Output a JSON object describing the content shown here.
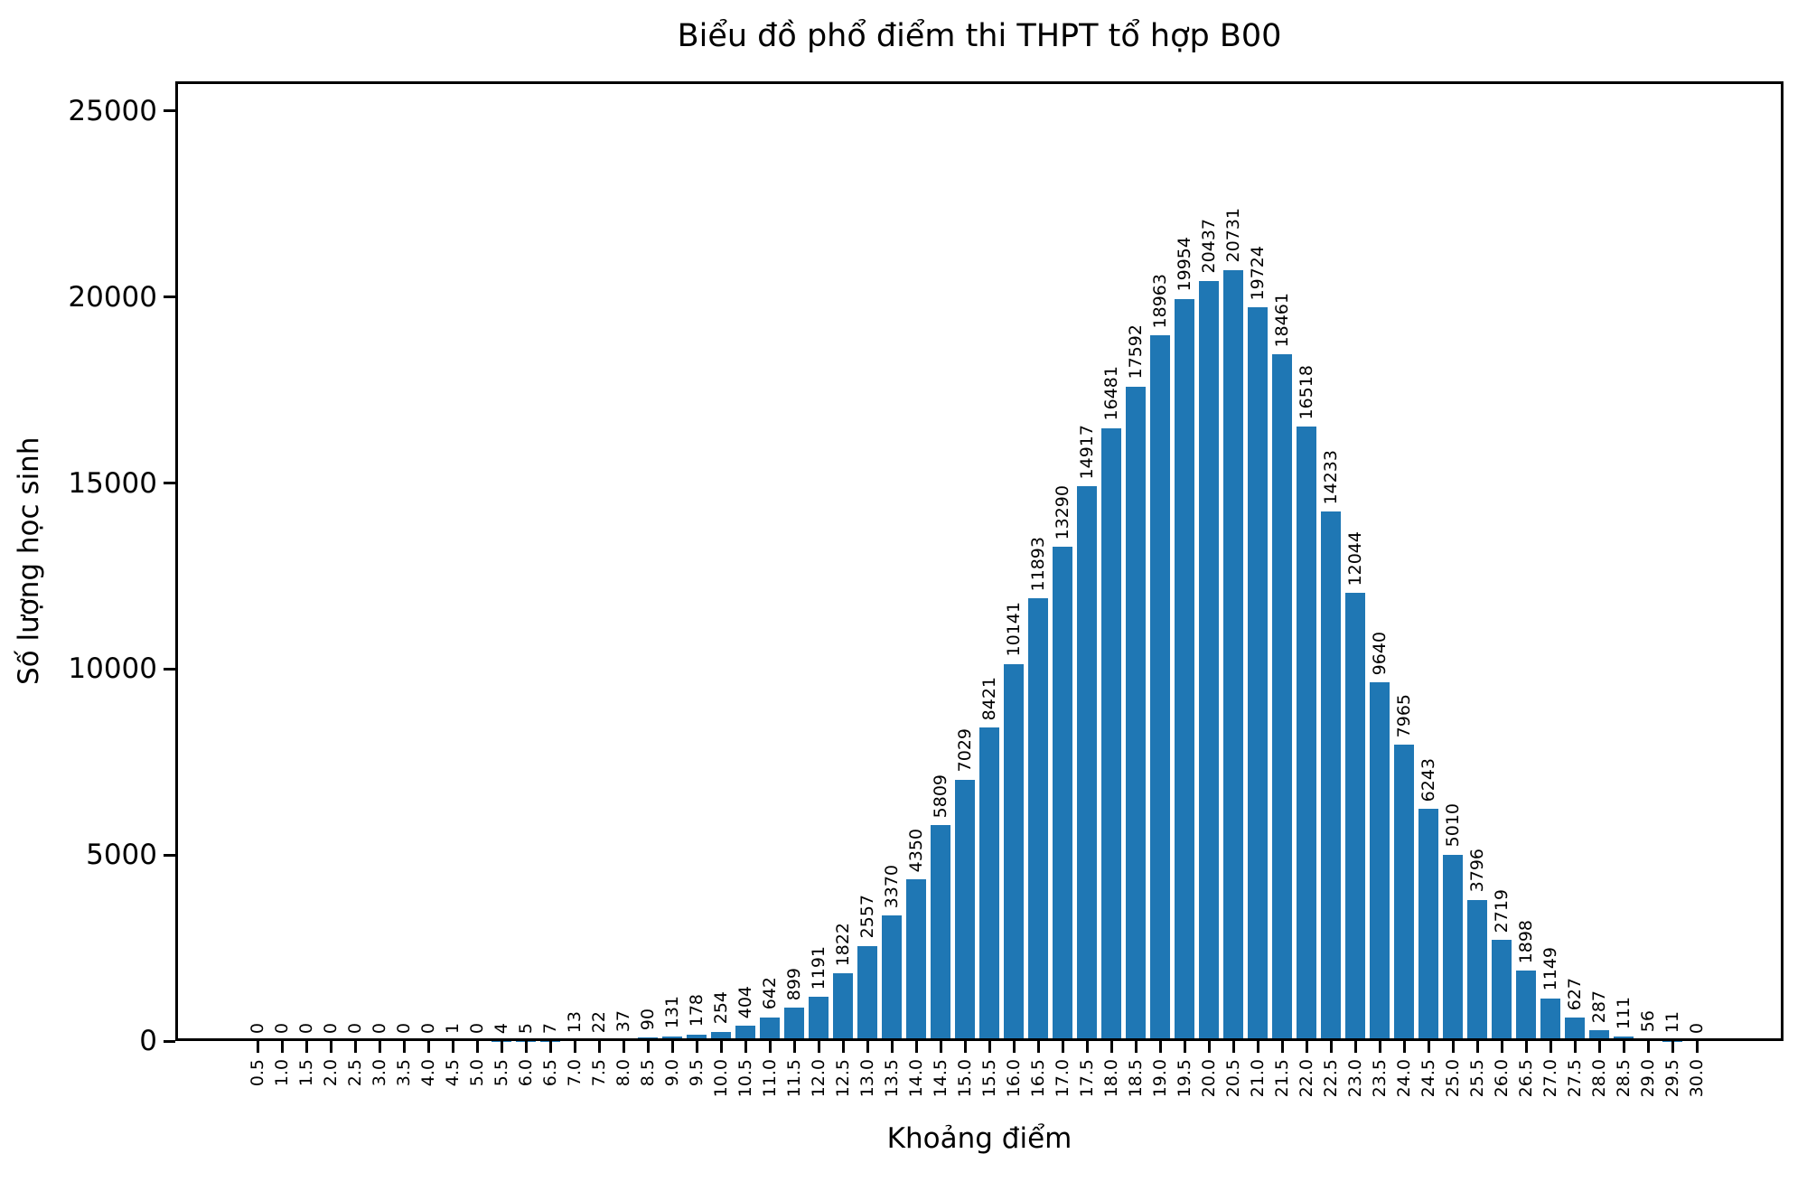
{
  "title": "Biểu đồ phổ điểm thi THPT tổ hợp B00",
  "chart_data": {
    "type": "bar",
    "title": "Biểu đồ phổ điểm thi THPT tổ hợp B00",
    "xlabel": "Khoảng điểm",
    "ylabel": "Số lượng học sinh",
    "categories": [
      "0.5",
      "1.0",
      "1.5",
      "2.0",
      "2.5",
      "3.0",
      "3.5",
      "4.0",
      "4.5",
      "5.0",
      "5.5",
      "6.0",
      "6.5",
      "7.0",
      "7.5",
      "8.0",
      "8.5",
      "9.0",
      "9.5",
      "10.0",
      "10.5",
      "11.0",
      "11.5",
      "12.0",
      "12.5",
      "13.0",
      "13.5",
      "14.0",
      "14.5",
      "15.0",
      "15.5",
      "16.0",
      "16.5",
      "17.0",
      "17.5",
      "18.0",
      "18.5",
      "19.0",
      "19.5",
      "20.0",
      "20.5",
      "21.0",
      "21.5",
      "22.0",
      "22.5",
      "23.0",
      "23.5",
      "24.0",
      "24.5",
      "25.0",
      "25.5",
      "26.0",
      "26.5",
      "27.0",
      "27.5",
      "28.0",
      "28.5",
      "29.0",
      "29.5",
      "30.0"
    ],
    "values": [
      0,
      0,
      0,
      0,
      0,
      0,
      0,
      0,
      1,
      0,
      4,
      5,
      7,
      13,
      22,
      37,
      90,
      131,
      178,
      254,
      404,
      642,
      899,
      1191,
      1822,
      2557,
      3370,
      4350,
      5809,
      7029,
      8421,
      10141,
      11893,
      13290,
      14917,
      16481,
      17592,
      18963,
      19954,
      20437,
      20731,
      19724,
      18461,
      16518,
      14233,
      12044,
      9640,
      7965,
      6243,
      5010,
      3796,
      2719,
      1898,
      1149,
      627,
      287,
      111,
      56,
      11,
      0
    ],
    "yticks": [
      0,
      5000,
      10000,
      15000,
      20000,
      25000
    ],
    "ylim": [
      0,
      25800
    ],
    "xtick_rotation": 90,
    "bar_label_rotation": 90,
    "bar_color": "#1f77b4",
    "axis_color": "#000000",
    "background_color": "#ffffff",
    "grid": false,
    "legend": "none"
  }
}
